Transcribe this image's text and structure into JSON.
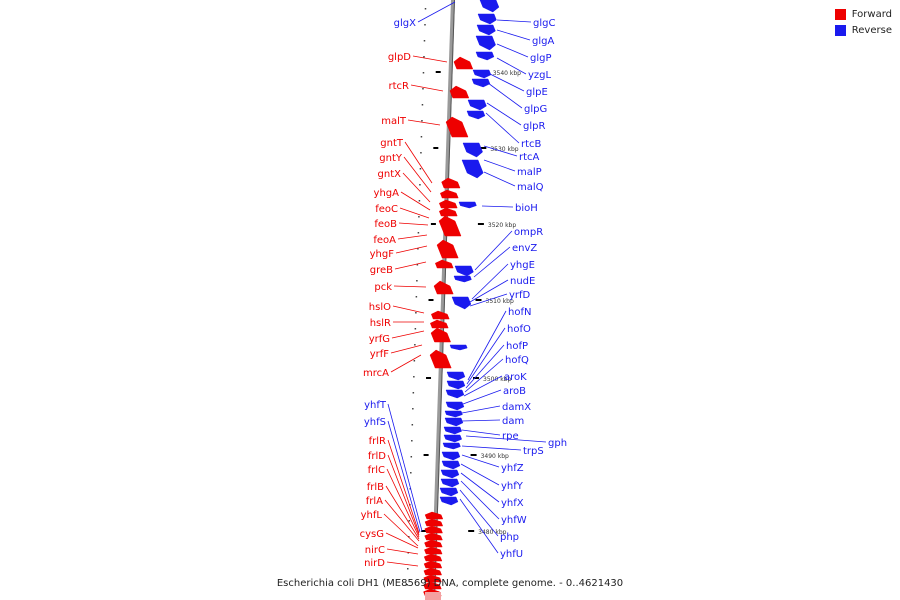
{
  "legend": {
    "forward": {
      "label": "Forward",
      "color": "#ee0000"
    },
    "reverse": {
      "label": "Reverse",
      "color": "#1a1aee"
    }
  },
  "caption": "Escherichia coli DH1 (ME8569) DNA, complete genome. - 0..4621430",
  "scale_labels": [
    "3540 kbp",
    "3530 kbp",
    "3520 kbp",
    "3510 kbp",
    "3500 kbp",
    "3490 kbp",
    "3480 kbp"
  ],
  "forward_genes": [
    "glgX",
    "glpD",
    "rtcR",
    "malT",
    "gntT",
    "gntY",
    "gntX",
    "yhgA",
    "feoC",
    "feoB",
    "feoA",
    "yhgF",
    "greB",
    "pck",
    "hslO",
    "hslR",
    "yrfG",
    "yrfF",
    "mrcA",
    "yhfT",
    "yhfS",
    "frlR",
    "frlD",
    "frlC",
    "frlB",
    "frlA",
    "yhfL",
    "cysG",
    "nirC",
    "nirD"
  ],
  "reverse_genes": [
    "glgC",
    "glgA",
    "glgP",
    "yzgL",
    "glpE",
    "glpG",
    "glpR",
    "rtcB",
    "rtcA",
    "malP",
    "malQ",
    "bioH",
    "ompR",
    "envZ",
    "yhgE",
    "nudE",
    "yrfD",
    "hofN",
    "hofO",
    "hofP",
    "hofQ",
    "aroK",
    "aroB",
    "damX",
    "dam",
    "rpe",
    "gph",
    "trpS",
    "yhfZ",
    "yhfY",
    "yhfX",
    "yhfW",
    "php",
    "yhfU"
  ]
}
